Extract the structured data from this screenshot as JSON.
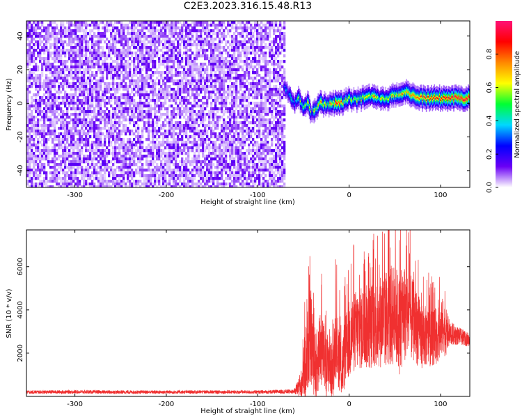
{
  "title": "C2E3.2023.316.15.48.R13",
  "chart_data": [
    {
      "type": "heatmap",
      "xlabel": "Height of straight line (km)",
      "ylabel": "Frequency (Hz)",
      "xlim": [
        -353,
        132
      ],
      "ylim": [
        -50,
        49
      ],
      "xticks": [
        "-300",
        "-200",
        "-100",
        "0",
        "100"
      ],
      "yticks": [
        "-40",
        "-20",
        "0",
        "20",
        "40"
      ],
      "colorbar": {
        "label": "Normalized spectral amplitude",
        "range": [
          0,
          1
        ],
        "ticks": [
          "0.0",
          "0.2",
          "0.4",
          "0.6",
          "0.8"
        ],
        "colormap": [
          "#ffffff",
          "#6a00f5",
          "#0000ff",
          "#00d8ff",
          "#00ff33",
          "#ffff00",
          "#ff8800",
          "#ff0000",
          "#ff1177"
        ]
      },
      "noise_region": {
        "x": [
          -353,
          -72
        ],
        "y": [
          -50,
          49
        ]
      },
      "signal_trace": {
        "x": [
          -72,
          -65,
          -60,
          -55,
          -50,
          -45,
          -42,
          -38,
          -32,
          -25,
          -18,
          -10,
          -5,
          0,
          8,
          15,
          25,
          35,
          45,
          55,
          62,
          68,
          75,
          85,
          95,
          105,
          115,
          132
        ],
        "frequency": [
          10,
          4,
          0,
          3,
          -3,
          1,
          -7,
          -3,
          0,
          -1,
          0,
          0,
          1,
          3,
          2,
          3,
          4,
          2,
          4,
          6,
          7,
          5,
          3,
          3,
          3,
          3,
          3,
          3
        ],
        "amplitude": [
          0.3,
          0.45,
          0.5,
          0.5,
          0.45,
          0.55,
          0.4,
          0.6,
          0.6,
          0.65,
          0.75,
          0.85,
          0.6,
          0.55,
          0.6,
          0.65,
          0.7,
          0.6,
          0.65,
          0.7,
          0.7,
          0.75,
          0.8,
          0.85,
          0.85,
          0.9,
          0.95,
          0.95
        ]
      },
      "grid": false
    },
    {
      "type": "line",
      "xlabel": "Height of straight line (km)",
      "ylabel": "SNR (10 * v/v)",
      "xlim": [
        -353,
        132
      ],
      "ylim": [
        0,
        7700
      ],
      "xticks": [
        "-300",
        "-200",
        "-100",
        "0",
        "100"
      ],
      "yticks": [
        "2000",
        "4000",
        "6000"
      ],
      "color": "#f03030",
      "grid": false,
      "series": [
        {
          "x": [
            -353,
            -300,
            -250,
            -200,
            -150,
            -100,
            -60,
            -52,
            -48,
            -45,
            -42,
            -40,
            -36,
            -32,
            -28,
            -25,
            -22,
            -18,
            -15,
            -10,
            -8,
            -5,
            -2,
            0,
            5,
            10,
            20,
            30,
            40,
            50,
            55,
            60,
            65,
            70,
            75,
            80,
            90,
            100,
            103,
            105,
            110,
            120,
            132
          ],
          "y": [
            200,
            210,
            200,
            200,
            205,
            200,
            230,
            600,
            1500,
            2300,
            2800,
            2200,
            1300,
            2400,
            1900,
            1300,
            1800,
            1000,
            2700,
            1600,
            1200,
            1900,
            2400,
            2600,
            3000,
            3100,
            3200,
            3400,
            3600,
            3800,
            3300,
            3900,
            3700,
            3500,
            3100,
            2800,
            2700,
            2900,
            3400,
            3000,
            2900,
            2800,
            2600
          ],
          "spread": [
            80,
            80,
            80,
            80,
            80,
            80,
            100,
            700,
            1800,
            1900,
            2200,
            2000,
            1600,
            1800,
            1600,
            1400,
            1600,
            1200,
            1800,
            1500,
            1400,
            1600,
            1700,
            1900,
            1900,
            1900,
            2000,
            2100,
            2300,
            2400,
            2300,
            2300,
            2100,
            1900,
            1700,
            1500,
            1300,
            1300,
            1300,
            1200,
            600,
            400,
            300
          ]
        }
      ]
    }
  ]
}
